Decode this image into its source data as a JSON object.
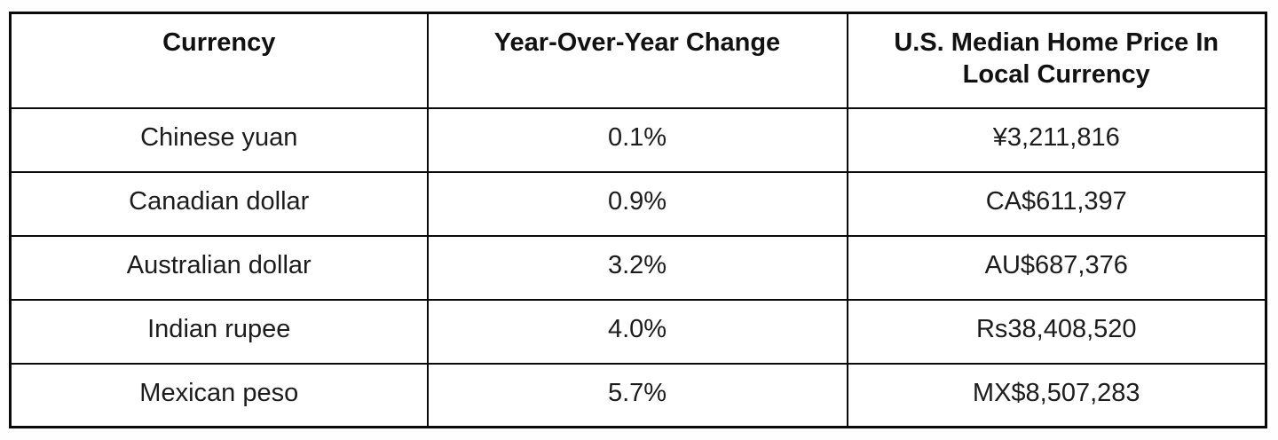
{
  "chart_data": {
    "type": "table",
    "title": "",
    "columns": [
      "Currency",
      "Year-Over-Year Change",
      "U.S. Median Home Price In Local Currency"
    ],
    "rows": [
      [
        "Chinese yuan",
        "0.1%",
        "¥3,211,816"
      ],
      [
        "Canadian dollar",
        "0.9%",
        "CA$611,397"
      ],
      [
        "Australian dollar",
        "3.2%",
        "AU$687,376"
      ],
      [
        "Indian rupee",
        "4.0%",
        "Rs38,408,520"
      ],
      [
        "Mexican peso",
        "5.7%",
        "MX$8,507,283"
      ]
    ],
    "layout": {
      "header_bold": true,
      "cell_alignment": "center",
      "grid": "all-borders"
    }
  },
  "colors": {
    "border": "#0a0a0a",
    "text": "#1c1c1c",
    "header_text": "#111111",
    "background": "#ffffff"
  }
}
